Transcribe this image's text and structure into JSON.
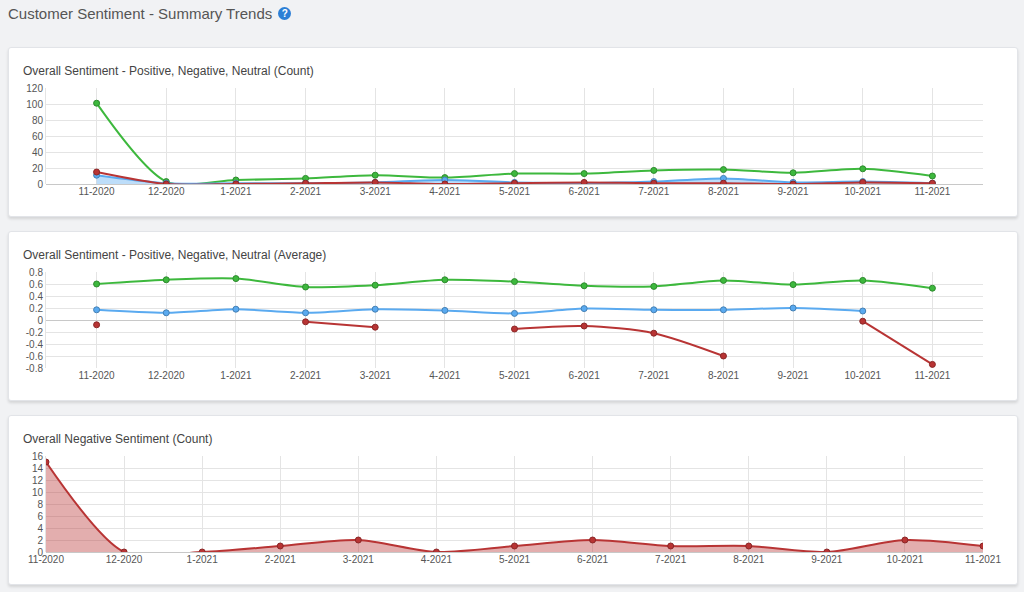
{
  "header": {
    "title": "Customer Sentiment - Summary Trends",
    "help_icon": "?"
  },
  "chart_data": [
    {
      "type": "line",
      "title": "Overall Sentiment - Positive, Negative, Neutral (Count)",
      "categories": [
        "11-2020",
        "12-2020",
        "1-2021",
        "2-2021",
        "3-2021",
        "4-2021",
        "5-2021",
        "6-2021",
        "7-2021",
        "8-2021",
        "9-2021",
        "10-2021",
        "11-2021"
      ],
      "series": [
        {
          "name": "Positive",
          "color": "#3db83d",
          "values": [
            101,
            3,
            5,
            7,
            11,
            8,
            13,
            13,
            17,
            18,
            14,
            19,
            10
          ]
        },
        {
          "name": "Neutral",
          "color": "#5aaaf0",
          "type": "area",
          "values": [
            11,
            1,
            1,
            1,
            2,
            5,
            2,
            1,
            3,
            7,
            2,
            3,
            1
          ]
        },
        {
          "name": "Negative",
          "color": "#b83434",
          "values": [
            15,
            0,
            0,
            1,
            2,
            0,
            1,
            2,
            1,
            1,
            0,
            2,
            1
          ]
        }
      ],
      "ylim": [
        0,
        120
      ],
      "yticks": [
        0,
        20,
        40,
        60,
        80,
        100,
        120
      ],
      "grid": true,
      "line_style": "smooth",
      "marker": "circle"
    },
    {
      "type": "line",
      "title": "Overall Sentiment - Positive, Negative, Neutral (Average)",
      "categories": [
        "11-2020",
        "12-2020",
        "1-2021",
        "2-2021",
        "3-2021",
        "4-2021",
        "5-2021",
        "6-2021",
        "7-2021",
        "8-2021",
        "9-2021",
        "10-2021",
        "11-2021"
      ],
      "series": [
        {
          "name": "Positive",
          "color": "#3db83d",
          "values": [
            0.6,
            0.67,
            0.69,
            0.55,
            0.58,
            0.67,
            0.64,
            0.57,
            0.56,
            0.66,
            0.59,
            0.66,
            0.53
          ]
        },
        {
          "name": "Neutral",
          "color": "#5aaaf0",
          "values": [
            0.17,
            0.12,
            0.18,
            0.12,
            0.18,
            0.16,
            0.11,
            0.19,
            0.17,
            0.17,
            0.2,
            0.15,
            null
          ]
        },
        {
          "name": "Negative",
          "color": "#b83434",
          "values": [
            -0.08,
            null,
            null,
            -0.03,
            -0.12,
            null,
            -0.15,
            -0.1,
            -0.22,
            -0.6,
            null,
            -0.02,
            -0.74
          ]
        }
      ],
      "ylim": [
        -0.8,
        0.8
      ],
      "yticks": [
        -0.8,
        -0.6,
        -0.4,
        -0.2,
        0,
        0.2,
        0.4,
        0.6,
        0.8
      ],
      "grid": true,
      "line_style": "smooth",
      "marker": "circle"
    },
    {
      "type": "area",
      "title": "Overall Negative Sentiment (Count)",
      "categories": [
        "11-2020",
        "12-2020",
        "1-2021",
        "2-2021",
        "3-2021",
        "4-2021",
        "5-2021",
        "6-2021",
        "7-2021",
        "8-2021",
        "9-2021",
        "10-2021",
        "11-2021"
      ],
      "series": [
        {
          "name": "Negative",
          "color": "#b83434",
          "values": [
            15,
            0,
            0,
            1,
            2,
            0,
            1,
            2,
            1,
            1,
            0,
            2,
            1
          ]
        }
      ],
      "ylim": [
        0,
        16
      ],
      "yticks": [
        0,
        2,
        4,
        6,
        8,
        10,
        12,
        14,
        16
      ],
      "grid": true,
      "line_style": "smooth",
      "marker": "circle"
    }
  ]
}
